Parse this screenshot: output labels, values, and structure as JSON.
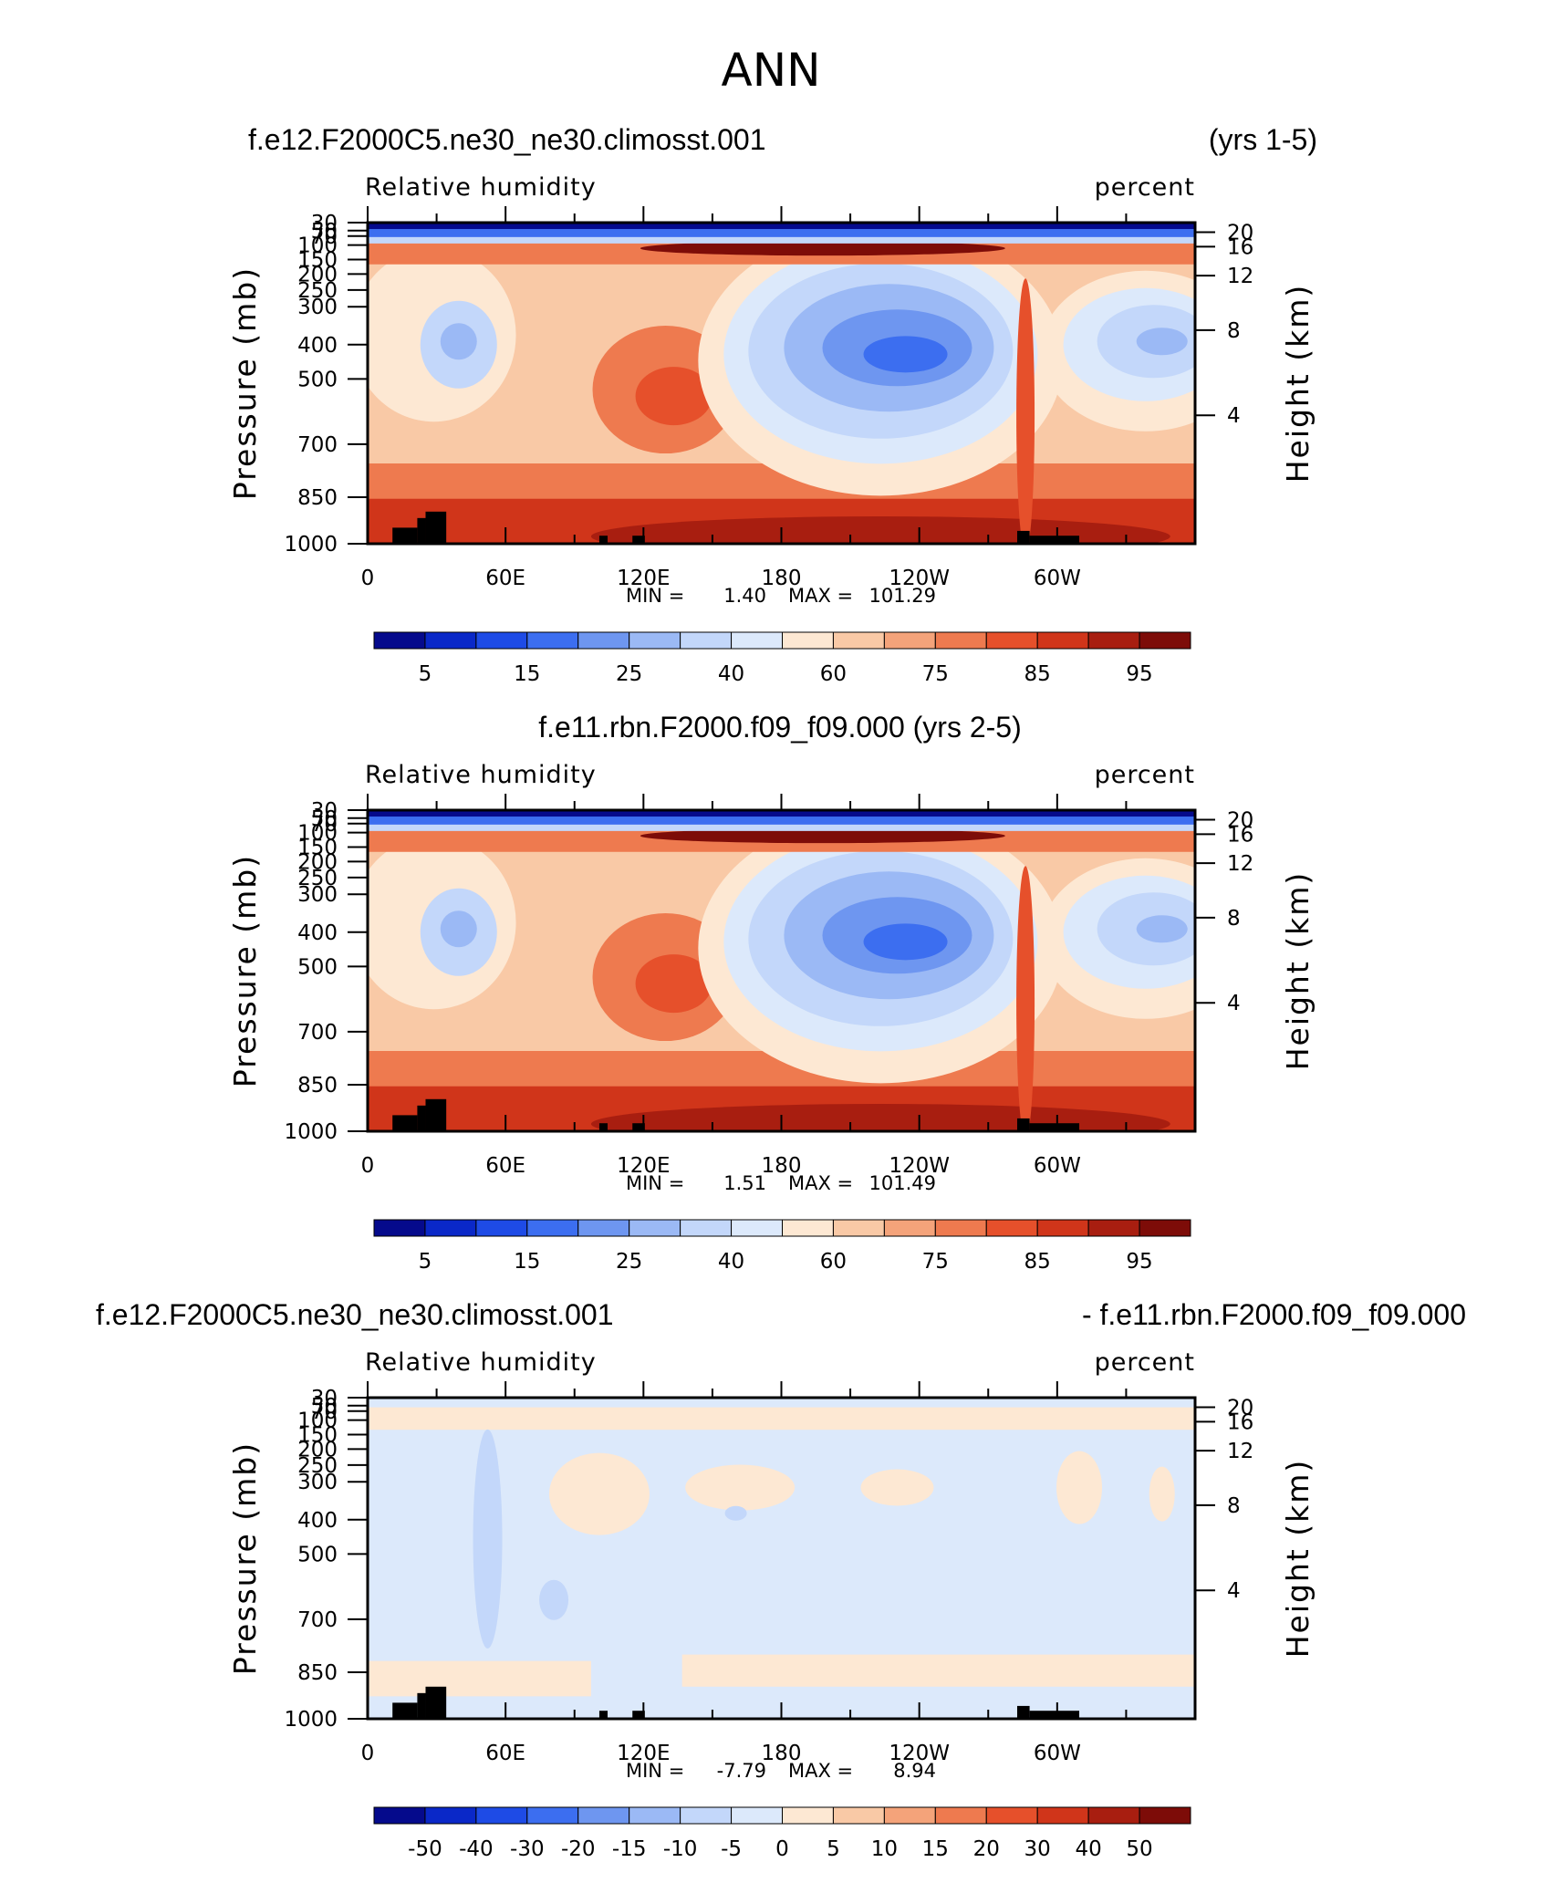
{
  "figure_title": "ANN",
  "chart_data": [
    {
      "type": "contour",
      "header_left": "f.e12.F2000C5.ne30_ne30.climosst.001",
      "header_right": "(yrs 1-5)",
      "header_center": "",
      "header_right2": "",
      "variable": "Relative humidity",
      "units": "percent",
      "ylabel": "Pressure (mb)",
      "ylabel_right": "Height (km)",
      "pressure_ticks": [
        "30",
        "50",
        "70",
        "100",
        "150",
        "200",
        "250",
        "300",
        "400",
        "500",
        "700",
        "850",
        "1000"
      ],
      "height_ticks": [
        "20",
        "16",
        "12",
        "8",
        "4"
      ],
      "x_tick_labels": [
        "0",
        "60E",
        "120E",
        "180",
        "120W",
        "60W"
      ],
      "min_label": "MIN =",
      "min_value": "1.40",
      "max_label": "MAX =",
      "max_value": "101.29",
      "colorbar_levels": [
        "5",
        "15",
        "25",
        "40",
        "60",
        "75",
        "85",
        "95"
      ],
      "colorbar_colors": [
        "#050a8c",
        "#0a28c8",
        "#1e4be6",
        "#3c6ef0",
        "#6e96f0",
        "#9bb9f5",
        "#c3d7fa",
        "#dce9fb",
        "#fde8d3",
        "#f9c9a6",
        "#f4a37a",
        "#ee7a4f",
        "#e6502b",
        "#d0351a",
        "#a81e10",
        "#7d0c08"
      ]
    },
    {
      "type": "contour",
      "header_left": "",
      "header_right": "",
      "header_center": "f.e11.rbn.F2000.f09_f09.000 (yrs 2-5)",
      "header_right2": "",
      "variable": "Relative humidity",
      "units": "percent",
      "ylabel": "Pressure (mb)",
      "ylabel_right": "Height (km)",
      "pressure_ticks": [
        "30",
        "50",
        "70",
        "100",
        "150",
        "200",
        "250",
        "300",
        "400",
        "500",
        "700",
        "850",
        "1000"
      ],
      "height_ticks": [
        "20",
        "16",
        "12",
        "8",
        "4"
      ],
      "x_tick_labels": [
        "0",
        "60E",
        "120E",
        "180",
        "120W",
        "60W"
      ],
      "min_label": "MIN =",
      "min_value": "1.51",
      "max_label": "MAX =",
      "max_value": "101.49",
      "colorbar_levels": [
        "5",
        "15",
        "25",
        "40",
        "60",
        "75",
        "85",
        "95"
      ],
      "colorbar_colors": [
        "#050a8c",
        "#0a28c8",
        "#1e4be6",
        "#3c6ef0",
        "#6e96f0",
        "#9bb9f5",
        "#c3d7fa",
        "#dce9fb",
        "#fde8d3",
        "#f9c9a6",
        "#f4a37a",
        "#ee7a4f",
        "#e6502b",
        "#d0351a",
        "#a81e10",
        "#7d0c08"
      ]
    },
    {
      "type": "contour",
      "header_left": "f.e12.F2000C5.ne30_ne30.climosst.001",
      "header_right": "- f.e11.rbn.F2000.f09_f09.000",
      "header_center": "",
      "header_right2": "",
      "variable": "Relative humidity",
      "units": "percent",
      "ylabel": "Pressure (mb)",
      "ylabel_right": "Height (km)",
      "pressure_ticks": [
        "30",
        "50",
        "70",
        "100",
        "150",
        "200",
        "250",
        "300",
        "400",
        "500",
        "700",
        "850",
        "1000"
      ],
      "height_ticks": [
        "20",
        "16",
        "12",
        "8",
        "4"
      ],
      "x_tick_labels": [
        "0",
        "60E",
        "120E",
        "180",
        "120W",
        "60W"
      ],
      "min_label": "MIN =",
      "min_value": "-7.79",
      "max_label": "MAX =",
      "max_value": "8.94",
      "colorbar_levels": [
        "-50",
        "-40",
        "-30",
        "-20",
        "-15",
        "-10",
        "-5",
        "0",
        "5",
        "10",
        "15",
        "20",
        "30",
        "40",
        "50"
      ],
      "colorbar_colors": [
        "#050a8c",
        "#0a28c8",
        "#1e4be6",
        "#3c6ef0",
        "#6e96f0",
        "#9bb9f5",
        "#c3d7fa",
        "#dce9fb",
        "#fde8d3",
        "#f9c9a6",
        "#f4a37a",
        "#ee7a4f",
        "#e6502b",
        "#d0351a",
        "#a81e10",
        "#7d0c08"
      ]
    }
  ]
}
